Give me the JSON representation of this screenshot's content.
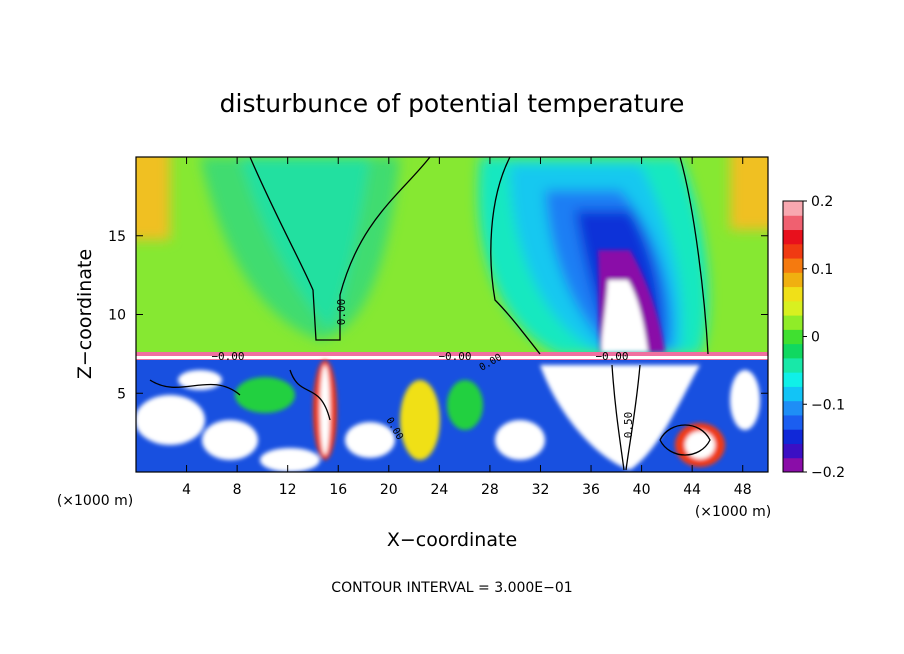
{
  "chart_data": {
    "type": "heatmap",
    "title": "disturbunce of potential temperature",
    "xlabel": "X−coordinate",
    "ylabel": "Z−coordinate",
    "x_unit": "(×1000 m)",
    "x_unit_right": "(×1000 m)",
    "xlim": [
      0,
      50
    ],
    "ylim": [
      0,
      20
    ],
    "x_ticks": [
      4,
      8,
      12,
      16,
      20,
      24,
      28,
      32,
      36,
      40,
      44,
      48
    ],
    "y_ticks": [
      5,
      10,
      15
    ],
    "colorbar": {
      "range": [
        -0.2,
        0.2
      ],
      "tick_values": [
        0.2,
        0.1,
        0,
        -0.1,
        -0.2
      ],
      "tick_labels": [
        "0.2",
        "0.1",
        "0",
        "−0.1",
        "−0.2"
      ],
      "colors": [
        "#8a0da8",
        "#3b0fc4",
        "#1028d8",
        "#1b5ef0",
        "#1e8ef6",
        "#12c4f6",
        "#10f0e8",
        "#18e8a8",
        "#10d860",
        "#40e030",
        "#90ec28",
        "#d8f020",
        "#f0e018",
        "#f0b010",
        "#f57a0f",
        "#f03a12",
        "#e8101c",
        "#f06070",
        "#f8a8b0"
      ]
    },
    "contour_labels": [
      "0.00",
      "−0.00",
      "−0.00",
      "−0.00",
      "0.00",
      "0.00",
      "0.50"
    ],
    "footer": "CONTOUR INTERVAL = 3.000E−01"
  }
}
